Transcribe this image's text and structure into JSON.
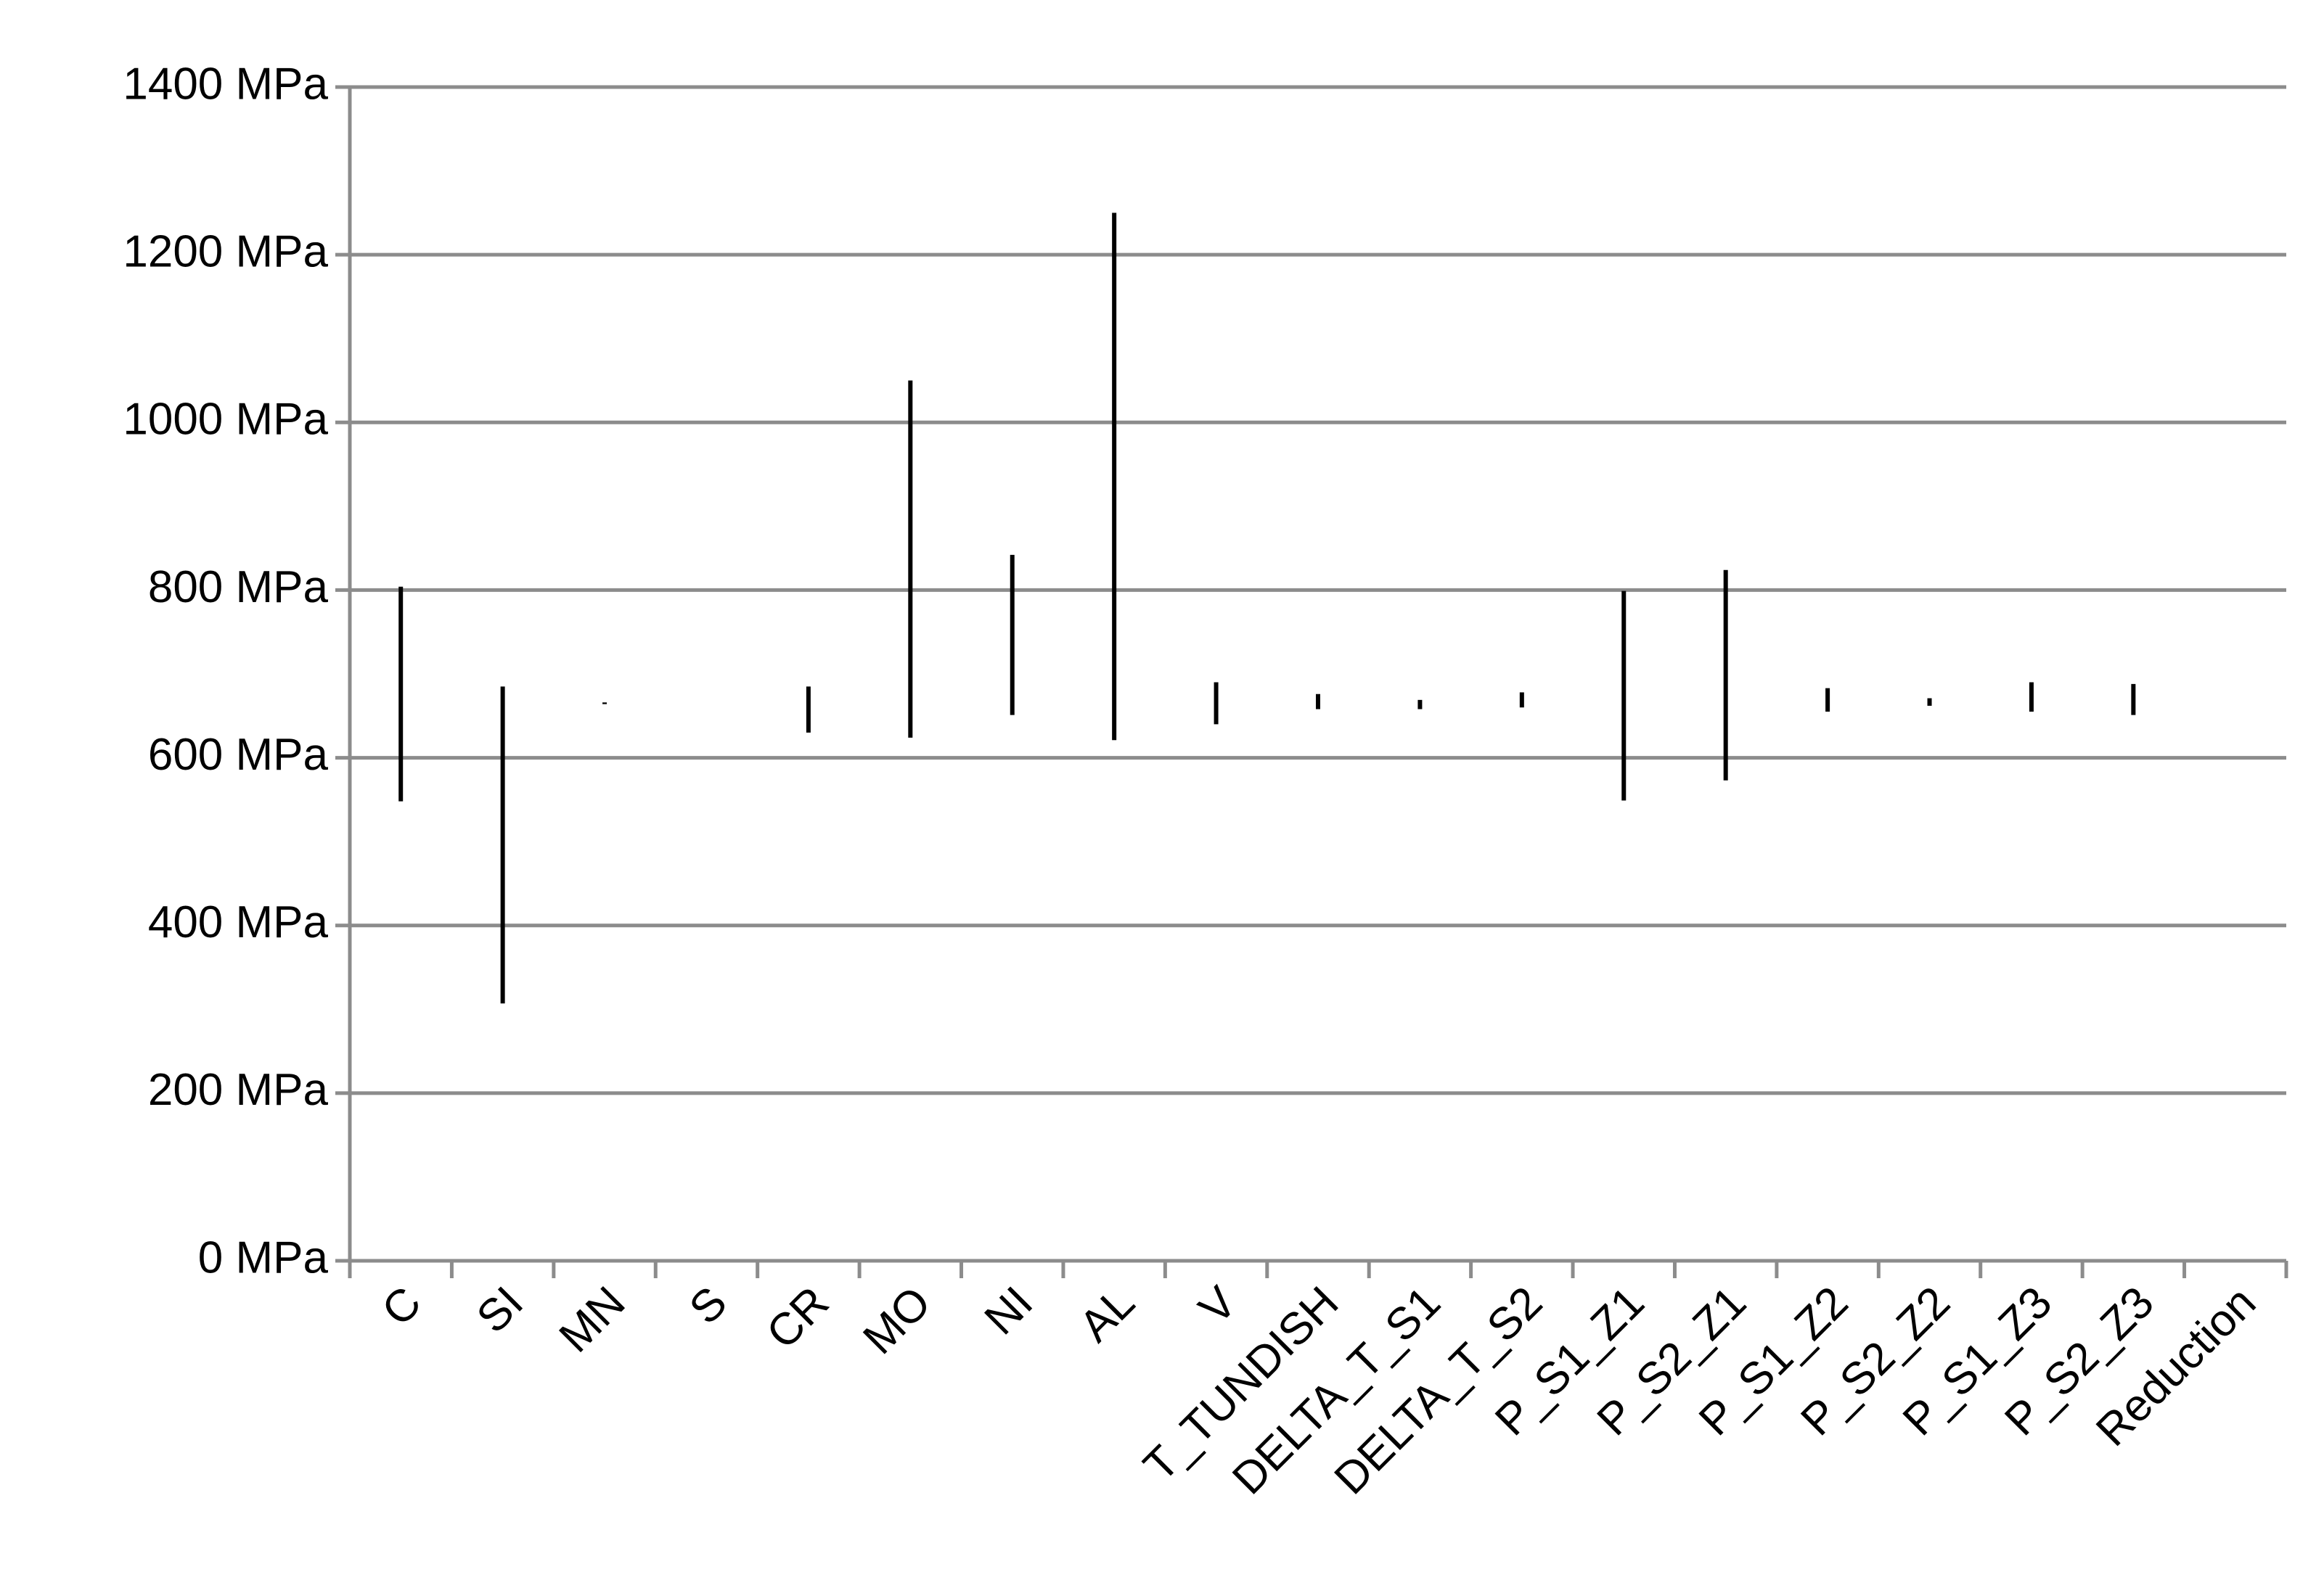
{
  "chart_data": {
    "type": "range",
    "categories": [
      "C",
      "SI",
      "MN",
      "S",
      "CR",
      "MO",
      "NI",
      "AL",
      "V",
      "T_TUNDISH",
      "DELTA_T_S1",
      "DELTA_T_S2",
      "P_S1_Z1",
      "P_S2_Z1",
      "P_S1_Z2",
      "P_S2_Z2",
      "P_S1_Z3",
      "P_S2_Z3",
      "Reduction"
    ],
    "high": [
      804,
      685,
      666,
      null,
      685,
      1050,
      842,
      1250,
      690,
      676,
      669,
      678,
      799,
      824,
      683,
      671,
      690,
      688,
      null
    ],
    "low": [
      548,
      307,
      664,
      null,
      630,
      624,
      651,
      621,
      640,
      658,
      658,
      660,
      549,
      573,
      655,
      662,
      655,
      651,
      null
    ],
    "color": "#000000",
    "ylim": [
      0,
      1400
    ],
    "yticks": [
      {
        "value": 0,
        "label": "0 MPa"
      },
      {
        "value": 200,
        "label": "200 MPa"
      },
      {
        "value": 400,
        "label": "400 MPa"
      },
      {
        "value": 600,
        "label": "600 MPa"
      },
      {
        "value": 800,
        "label": "800 MPa"
      },
      {
        "value": 1000,
        "label": "1000 MPa"
      },
      {
        "value": 1200,
        "label": "1200 MPa"
      },
      {
        "value": 1400,
        "label": "1400 MPa"
      }
    ],
    "grid": true
  }
}
